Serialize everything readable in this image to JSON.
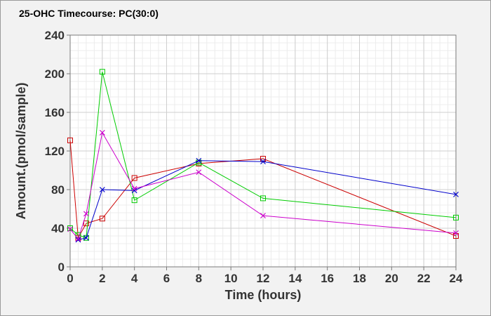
{
  "chart_data": {
    "type": "line",
    "title": "25-OHC Timecourse: PC(30:0)",
    "xlabel": "Time (hours)",
    "ylabel": "Amount.(pmol/sample)",
    "xlim": [
      0,
      24
    ],
    "ylim": [
      0,
      240
    ],
    "xticks": [
      0,
      2,
      4,
      6,
      8,
      10,
      12,
      14,
      16,
      18,
      20,
      22,
      24
    ],
    "yticks": [
      0,
      40,
      80,
      120,
      160,
      200,
      240
    ],
    "grid": true,
    "legend": "none",
    "series": [
      {
        "color": "#cc0000",
        "marker": "square",
        "x": [
          0,
          0.5,
          1,
          2,
          4,
          8,
          12,
          24
        ],
        "y": [
          131,
          30,
          45,
          50,
          92,
          107,
          112,
          32
        ]
      },
      {
        "color": "#00cc00",
        "marker": "square",
        "x": [
          0,
          0.5,
          1,
          2,
          4,
          8,
          12,
          24
        ],
        "y": [
          40,
          33,
          30,
          202,
          69,
          108,
          71,
          51
        ]
      },
      {
        "color": "#0000cc",
        "marker": "x",
        "x": [
          0.5,
          1,
          2,
          4,
          8,
          12,
          24
        ],
        "y": [
          28,
          30,
          80,
          79,
          110,
          109,
          75
        ]
      },
      {
        "color": "#cc00cc",
        "marker": "x",
        "x": [
          0,
          0.5,
          1,
          2,
          4,
          8,
          12,
          24
        ],
        "y": [
          39,
          29,
          55,
          139,
          81,
          98,
          53,
          35
        ]
      }
    ]
  }
}
